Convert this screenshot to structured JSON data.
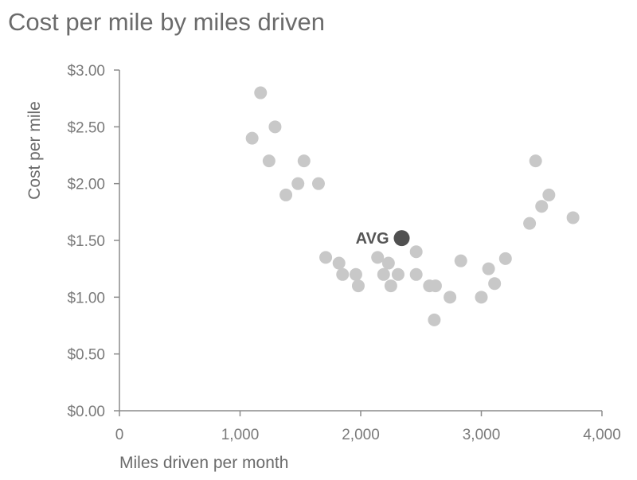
{
  "chart_data": {
    "type": "scatter",
    "title": "Cost per mile by miles driven",
    "xlabel": "Miles driven per month",
    "ylabel": "Cost per mile",
    "xlim": [
      0,
      4000
    ],
    "ylim": [
      0,
      3
    ],
    "x_ticks": [
      0,
      1000,
      2000,
      3000,
      4000
    ],
    "x_tick_labels": [
      "0",
      "1,000",
      "2,000",
      "3,000",
      "4,000"
    ],
    "y_ticks": [
      0,
      0.5,
      1,
      1.5,
      2,
      2.5,
      3
    ],
    "y_tick_labels": [
      "$0.00",
      "$0.50",
      "$1.00",
      "$1.50",
      "$2.00",
      "$2.50",
      "$3.00"
    ],
    "grid": false,
    "colors": {
      "points": "#c8c8c8",
      "highlight": "#505050",
      "axis": "#8c8c8c"
    },
    "series": [
      {
        "points": [
          {
            "x": 1100,
            "y": 2.4
          },
          {
            "x": 1170,
            "y": 2.8
          },
          {
            "x": 1240,
            "y": 2.2
          },
          {
            "x": 1290,
            "y": 2.5
          },
          {
            "x": 1380,
            "y": 1.9
          },
          {
            "x": 1480,
            "y": 2.0
          },
          {
            "x": 1530,
            "y": 2.2
          },
          {
            "x": 1650,
            "y": 2.0
          },
          {
            "x": 1710,
            "y": 1.35
          },
          {
            "x": 1820,
            "y": 1.3
          },
          {
            "x": 1850,
            "y": 1.2
          },
          {
            "x": 1960,
            "y": 1.2
          },
          {
            "x": 1980,
            "y": 1.1
          },
          {
            "x": 2140,
            "y": 1.35
          },
          {
            "x": 2190,
            "y": 1.2
          },
          {
            "x": 2230,
            "y": 1.3
          },
          {
            "x": 2250,
            "y": 1.1
          },
          {
            "x": 2310,
            "y": 1.2
          },
          {
            "x": 2460,
            "y": 1.4
          },
          {
            "x": 2460,
            "y": 1.2
          },
          {
            "x": 2570,
            "y": 1.1
          },
          {
            "x": 2620,
            "y": 1.1
          },
          {
            "x": 2610,
            "y": 0.8
          },
          {
            "x": 2740,
            "y": 1.0
          },
          {
            "x": 2830,
            "y": 1.32
          },
          {
            "x": 3000,
            "y": 1.0
          },
          {
            "x": 3060,
            "y": 1.25
          },
          {
            "x": 3110,
            "y": 1.12
          },
          {
            "x": 3200,
            "y": 1.34
          },
          {
            "x": 3400,
            "y": 1.65
          },
          {
            "x": 3450,
            "y": 2.2
          },
          {
            "x": 3500,
            "y": 1.8
          },
          {
            "x": 3560,
            "y": 1.9
          },
          {
            "x": 3760,
            "y": 1.7
          }
        ]
      }
    ],
    "highlight": {
      "label": "AVG",
      "x": 2340,
      "y": 1.52
    }
  }
}
